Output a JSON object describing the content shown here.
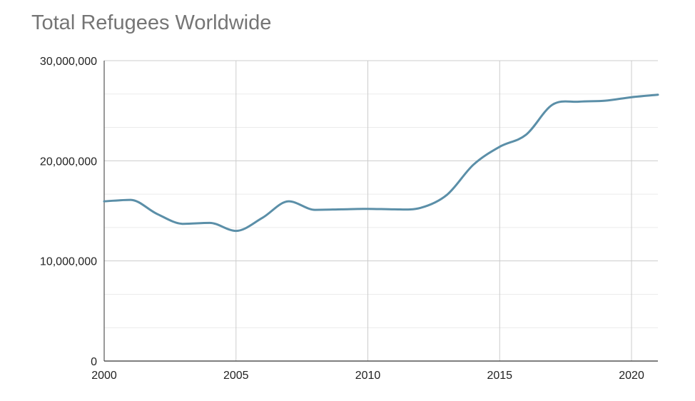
{
  "chart_data": {
    "type": "line",
    "title": "Total Refugees Worldwide",
    "xlabel": "",
    "ylabel": "",
    "xlim": [
      2000,
      2021
    ],
    "ylim": [
      0,
      30000000
    ],
    "x_ticks": [
      "2000",
      "2005",
      "2010",
      "2015",
      "2020"
    ],
    "y_ticks": [
      "0",
      "10,000,000",
      "20,000,000",
      "30,000,000"
    ],
    "grid": true,
    "legend": "none",
    "line_color": "#5b8fa8",
    "series": [
      {
        "x": [
          2000,
          2001,
          2002,
          2003,
          2004,
          2005,
          2006,
          2007,
          2008,
          2009,
          2010,
          2011,
          2012,
          2013,
          2014,
          2015,
          2016,
          2017,
          2018,
          2019,
          2020,
          2021
        ],
        "values": [
          15950000,
          16100000,
          14700000,
          13700000,
          13800000,
          13000000,
          14300000,
          15950000,
          15100000,
          15150000,
          15200000,
          15150000,
          15300000,
          16600000,
          19600000,
          21400000,
          22600000,
          25600000,
          25900000,
          26000000,
          26350000,
          26600000
        ]
      }
    ]
  }
}
